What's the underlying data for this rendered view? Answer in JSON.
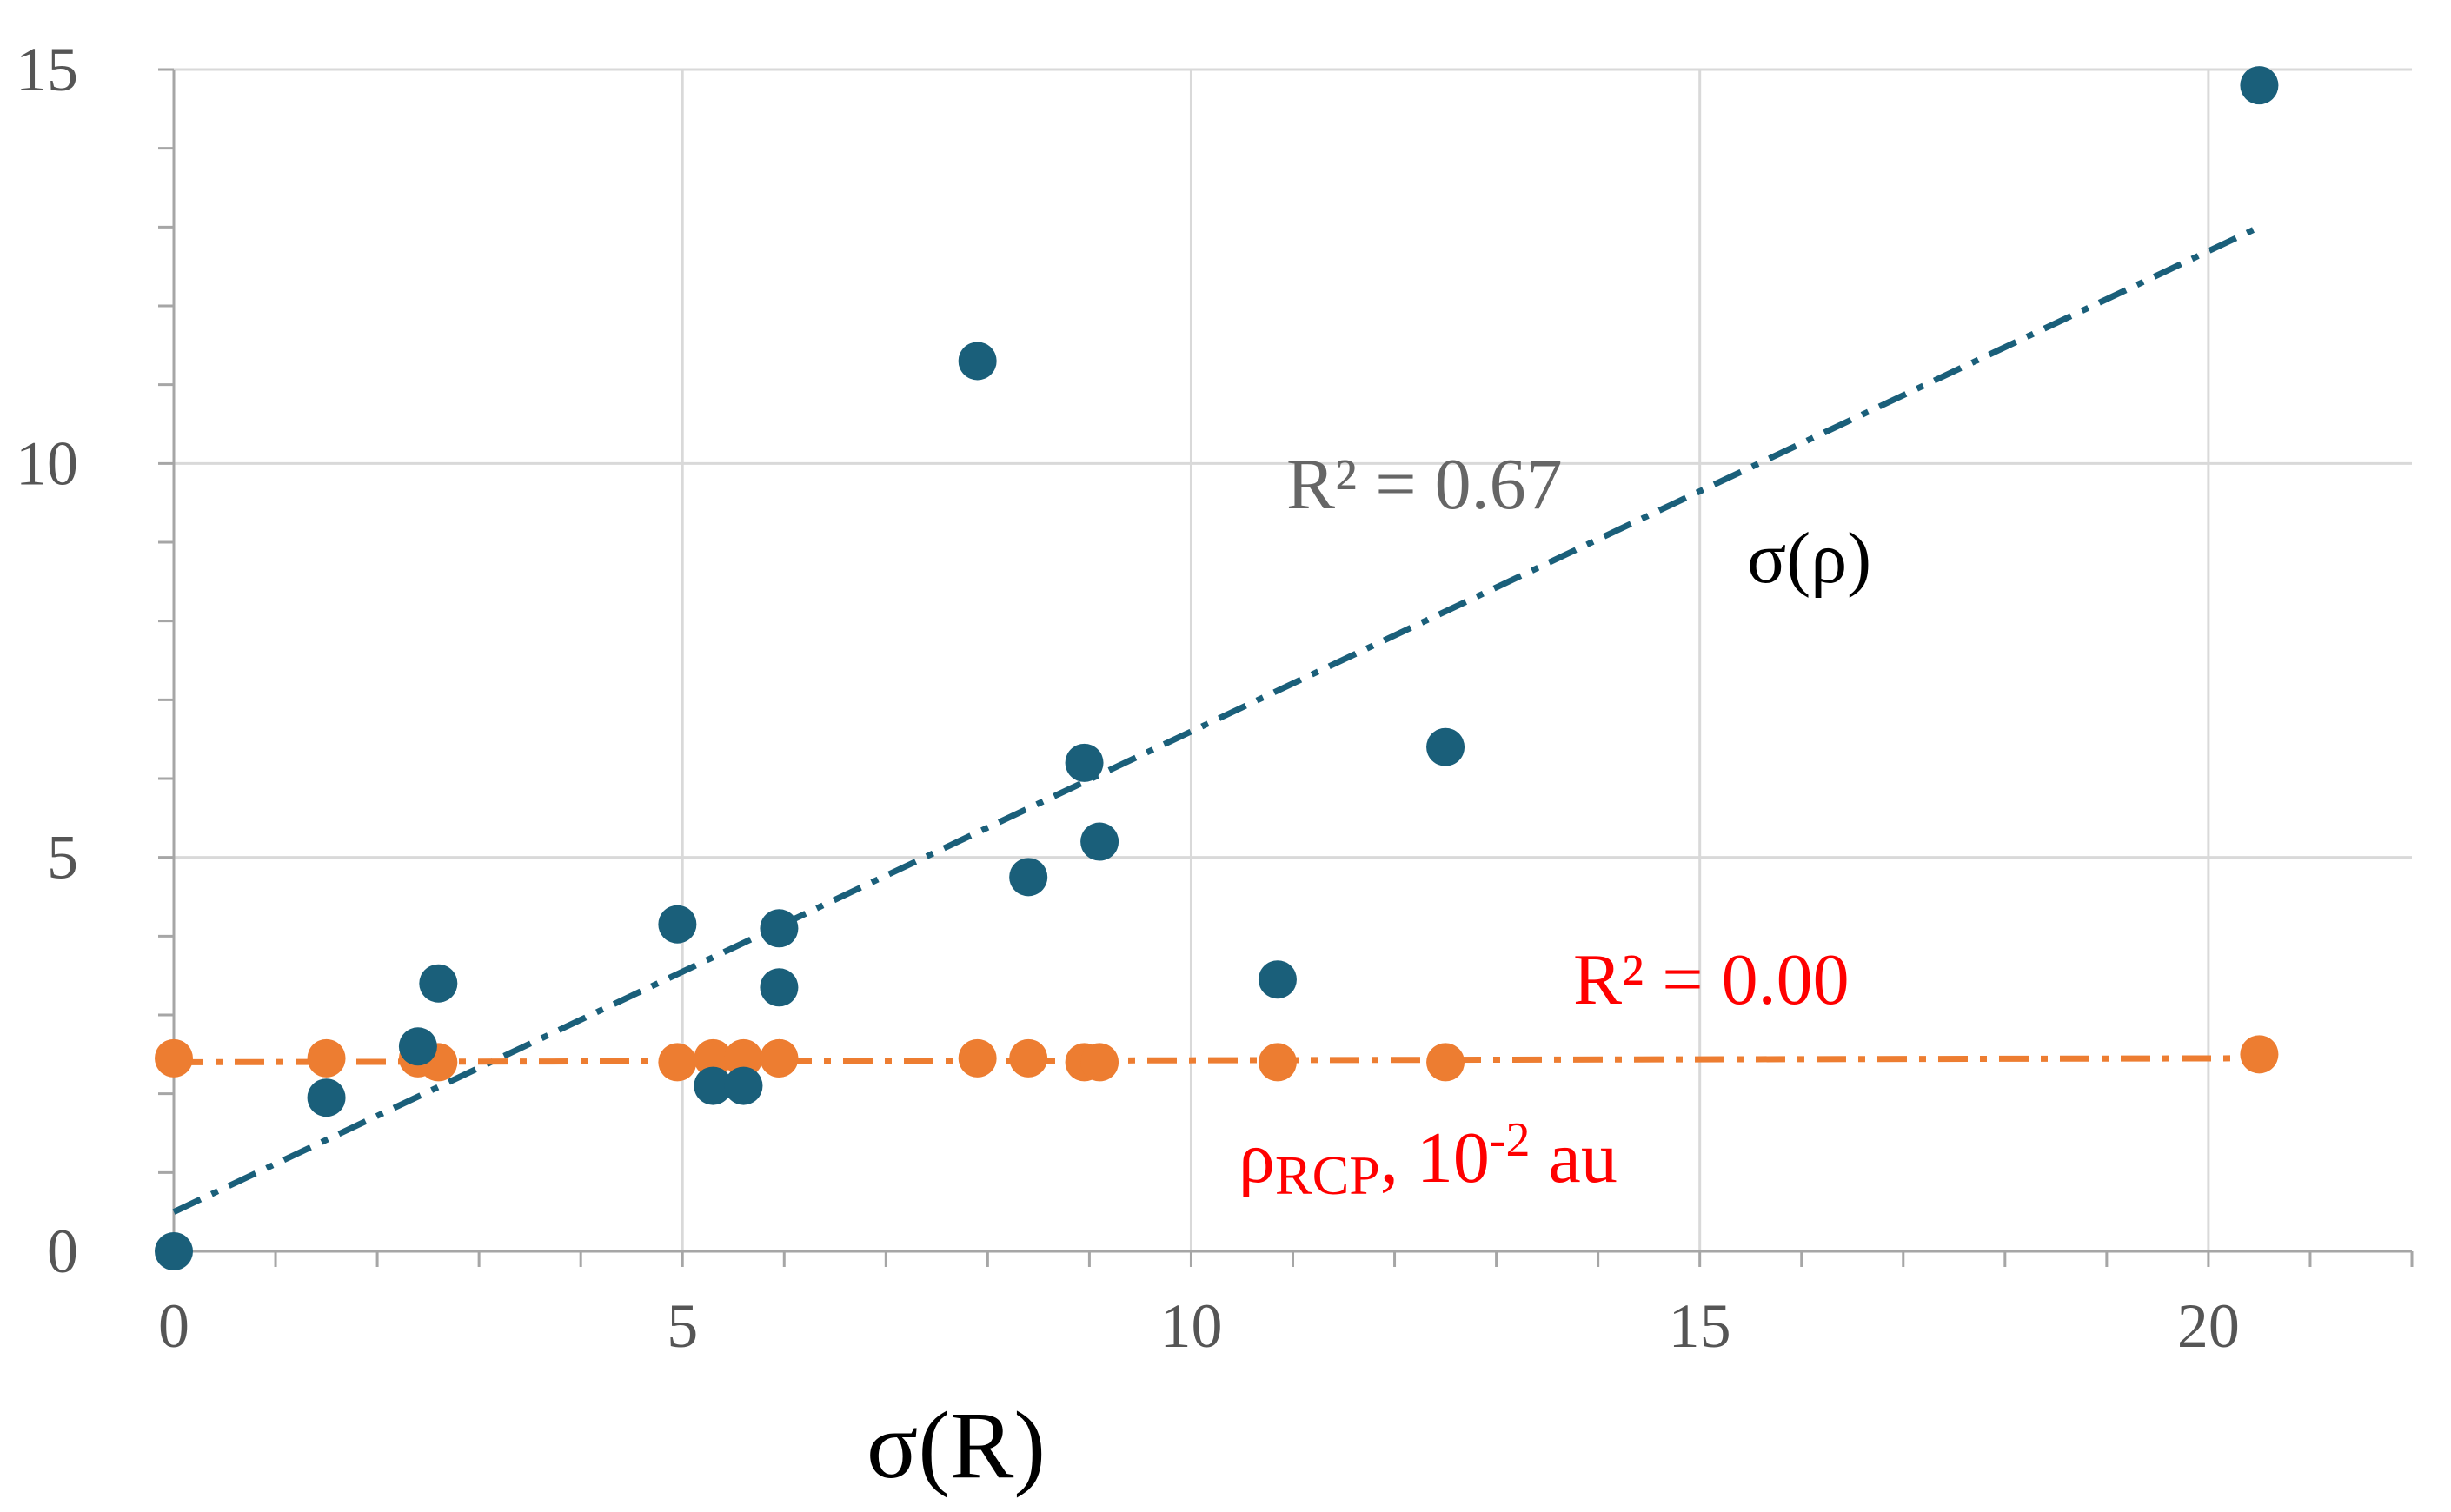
{
  "chart_data": {
    "type": "scatter",
    "title": "",
    "xlabel": "σ(R)",
    "ylabel": "",
    "xlim": [
      0,
      22
    ],
    "ylim": [
      0,
      15
    ],
    "x_ticks": [
      0,
      5,
      10,
      15,
      20
    ],
    "y_ticks": [
      0,
      5,
      10,
      15
    ],
    "x_minor_step": 1,
    "y_minor_step": 1,
    "grid": true,
    "series": [
      {
        "name": "σ(ρ)",
        "label_text": "σ(ρ)",
        "color": "#1a5f7a",
        "x": [
          0,
          1.5,
          2.4,
          2.6,
          4.95,
          5.3,
          5.6,
          5.95,
          5.95,
          7.9,
          8.4,
          8.95,
          9.1,
          10.85,
          12.5,
          20.5
        ],
        "y": [
          0,
          1.95,
          2.6,
          3.4,
          4.15,
          2.1,
          2.1,
          4.1,
          3.35,
          11.3,
          4.75,
          6.2,
          5.2,
          3.45,
          6.4,
          14.8
        ],
        "trendline": {
          "x": [
            0,
            20.5
          ],
          "y": [
            0.5,
            13.0
          ],
          "r2_text": "R² = 0.67",
          "color": "#1a5f7a"
        }
      },
      {
        "name": "ρRCP, 10-2 au",
        "label_main": "ρ",
        "label_sub": "RCP",
        "label_rest": ", 10",
        "label_sup": "-2",
        "label_unit": " au",
        "color": "#ed7d31",
        "x": [
          0,
          1.5,
          2.4,
          2.6,
          4.95,
          5.3,
          5.6,
          5.95,
          5.95,
          7.9,
          8.4,
          8.95,
          9.1,
          10.85,
          12.5,
          20.5
        ],
        "y": [
          2.45,
          2.45,
          2.45,
          2.4,
          2.4,
          2.45,
          2.45,
          2.45,
          2.45,
          2.45,
          2.45,
          2.4,
          2.4,
          2.4,
          2.4,
          2.5
        ],
        "trendline": {
          "x": [
            0,
            20.5
          ],
          "y": [
            2.4,
            2.45
          ],
          "r2_text": "R² = 0.00",
          "color": "#ed7d31"
        }
      }
    ],
    "annotation_colors": {
      "r2_blue": "#666666",
      "r2_orange": "#ff0000",
      "rcp_label": "#ff0000"
    }
  }
}
